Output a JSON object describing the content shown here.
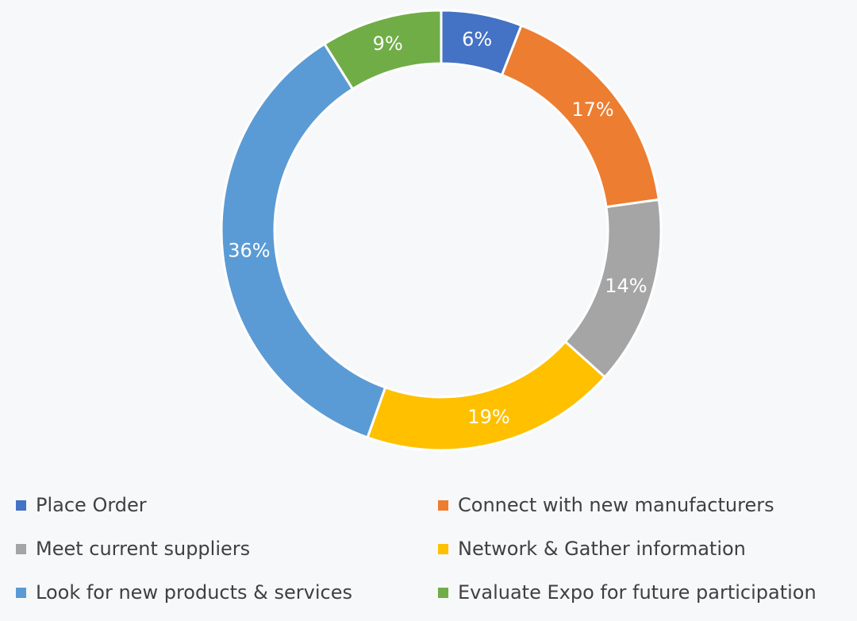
{
  "chart_data": {
    "type": "donut",
    "categories": [
      "Place Order",
      "Connect with new manufacturers",
      "Meet current suppliers",
      "Network & Gather information",
      "Look for new products & services",
      "Evaluate Expo for future participation"
    ],
    "values": [
      6,
      17,
      14,
      19,
      36,
      9
    ],
    "value_labels": [
      "6%",
      "17%",
      "14%",
      "19%",
      "36%",
      "9%"
    ],
    "colors": [
      "#4472c4",
      "#ed7d31",
      "#a5a5a5",
      "#ffc000",
      "#5b9bd5",
      "#70ad47"
    ],
    "legend": "bottom"
  }
}
